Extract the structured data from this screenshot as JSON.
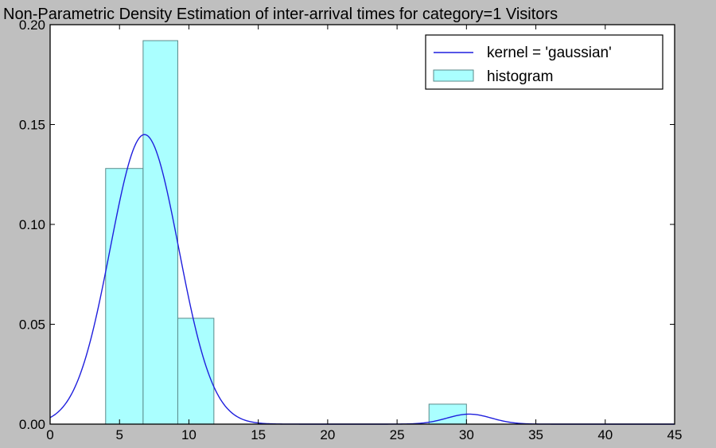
{
  "chart_data": {
    "type": "bar",
    "title": "Non-Parametric Density Estimation of inter-arrival times for category=1 Visitors",
    "xlabel": "",
    "ylabel": "",
    "xlim": [
      0,
      45
    ],
    "ylim": [
      0,
      0.2
    ],
    "xticks": [
      0,
      5,
      10,
      15,
      20,
      25,
      30,
      35,
      40,
      45
    ],
    "yticks": [
      0.0,
      0.05,
      0.1,
      0.15,
      0.2
    ],
    "ytick_labels": [
      "0.00",
      "0.05",
      "0.10",
      "0.15",
      "0.20"
    ],
    "grid": false,
    "legend_position": "top-right",
    "histogram": {
      "name": "histogram",
      "bins": [
        {
          "x0": 4.0,
          "x1": 6.7,
          "value": 0.128
        },
        {
          "x0": 6.7,
          "x1": 9.2,
          "value": 0.192
        },
        {
          "x0": 9.2,
          "x1": 11.8,
          "value": 0.053
        },
        {
          "x0": 27.3,
          "x1": 30.0,
          "value": 0.01
        }
      ],
      "color": "#aaffff",
      "edge_color": "#5a8a8a"
    },
    "series": [
      {
        "name": "kernel = 'gaussian'",
        "type": "line",
        "color": "#1f1fdd",
        "components": [
          {
            "mean": 6.8,
            "sd": 2.47,
            "peak": 0.145
          },
          {
            "mean": 30.2,
            "sd": 1.6,
            "peak": 0.005
          }
        ],
        "x_range": [
          0,
          45
        ]
      }
    ]
  }
}
